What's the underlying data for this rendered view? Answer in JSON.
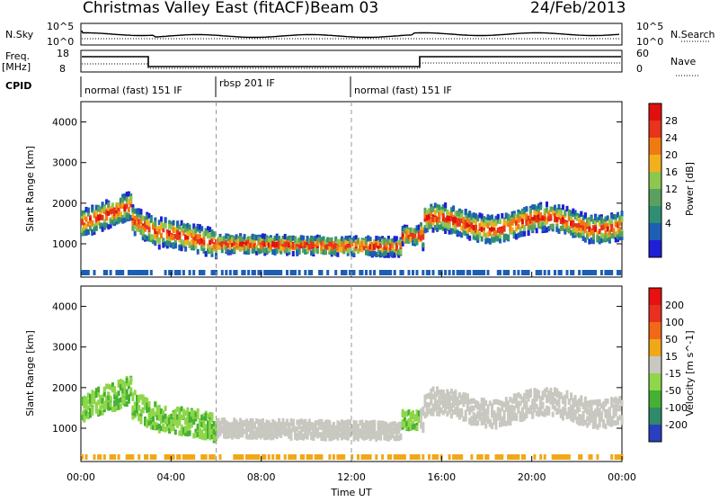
{
  "header": {
    "station": "Christmas Valley East (fitACF)",
    "beam": "Beam 03",
    "date": "24/Feb/2013"
  },
  "panels": {
    "nsky_label": "N.Sky",
    "nsky_ticks": [
      "10^5",
      "10^0"
    ],
    "nsearch_label": "N.Search",
    "nsearch_ticks": [
      "10^5",
      "10^0"
    ],
    "freq_label": "Freq.",
    "freq_unit": "[MHz]",
    "freq_ticks": [
      "18",
      "8"
    ],
    "nave_label": "Nave",
    "nave_ticks": [
      "60",
      "0"
    ],
    "cpid_label": "CPID",
    "cpid_segments": [
      "normal (fast) 151 IF",
      "rbsp 201 IF",
      "normal (fast) 151 IF"
    ]
  },
  "chart_data": [
    {
      "type": "heatmap",
      "ylabel": "Slant Range [km]",
      "xlabel": "Time UT",
      "ylim": [
        180,
        4500
      ],
      "yticks": [
        "1000",
        "2000",
        "3000",
        "4000"
      ],
      "xticks": [
        "00:00",
        "04:00",
        "08:00",
        "12:00",
        "16:00",
        "20:00",
        "00:00"
      ],
      "colorbar": {
        "label": "Power [dB]",
        "ticks": [
          "28",
          "24",
          "20",
          "16",
          "12",
          "8",
          "4"
        ],
        "colors": [
          "#1f1fd6",
          "#1c5fb5",
          "#2f8f73",
          "#5aa160",
          "#8cc850",
          "#f2b01e",
          "#f07a12",
          "#e8341a",
          "#e01010"
        ]
      }
    },
    {
      "type": "heatmap",
      "ylabel": "Slant Range [km]",
      "xlabel": "Time UT",
      "ylim": [
        180,
        4500
      ],
      "yticks": [
        "1000",
        "2000",
        "3000",
        "4000"
      ],
      "xticks": [
        "00:00",
        "04:00",
        "08:00",
        "12:00",
        "16:00",
        "20:00",
        "00:00"
      ],
      "colorbar": {
        "label": "Velocity [m s^-1]",
        "ticks": [
          "200",
          "100",
          "50",
          "15",
          "-15",
          "-50",
          "-100",
          "-200"
        ],
        "colors": [
          "#2a3fbf",
          "#2f8a6a",
          "#45b033",
          "#8fd64a",
          "#c8c8c0",
          "#f0a818",
          "#f06818",
          "#e83020",
          "#e81010"
        ]
      }
    }
  ],
  "xaxis_title": "Time UT"
}
